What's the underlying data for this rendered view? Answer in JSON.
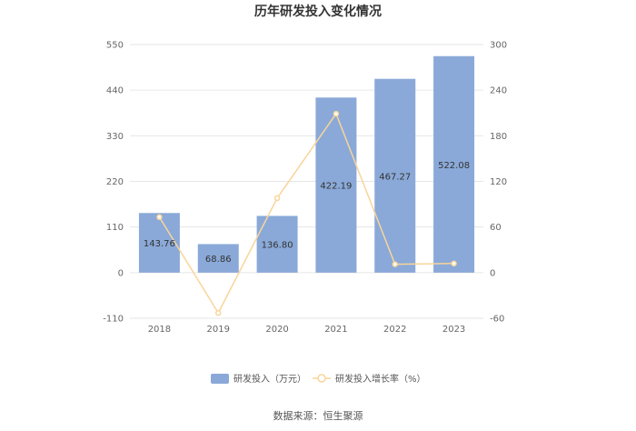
{
  "chart_data": {
    "type": "bar",
    "title": "历年研发投入变化情况",
    "categories": [
      "2018",
      "2019",
      "2020",
      "2021",
      "2022",
      "2023"
    ],
    "series": [
      {
        "name": "研发投入（万元）",
        "type": "bar",
        "axis": "left",
        "color": "#8aa9d8",
        "values": [
          143.76,
          68.86,
          136.8,
          422.19,
          467.27,
          522.08
        ],
        "labels": [
          "143.76",
          "68.86",
          "136.80",
          "422.19",
          "467.27",
          "522.08"
        ]
      },
      {
        "name": "研发投入增长率（%）",
        "type": "line",
        "axis": "right",
        "color": "#f8d59a",
        "values": [
          73,
          -53,
          98,
          209,
          11,
          12
        ]
      }
    ],
    "y_left": {
      "ylim": [
        -110,
        550
      ],
      "ticks": [
        "550",
        "440",
        "330",
        "220",
        "110",
        "0",
        "-110"
      ]
    },
    "y_right": {
      "ylim": [
        -60,
        300
      ],
      "ticks": [
        "300",
        "240",
        "180",
        "120",
        "60",
        "0",
        "-60"
      ]
    },
    "grid": true,
    "legend": "bottom"
  },
  "source": "数据来源：恒生聚源"
}
